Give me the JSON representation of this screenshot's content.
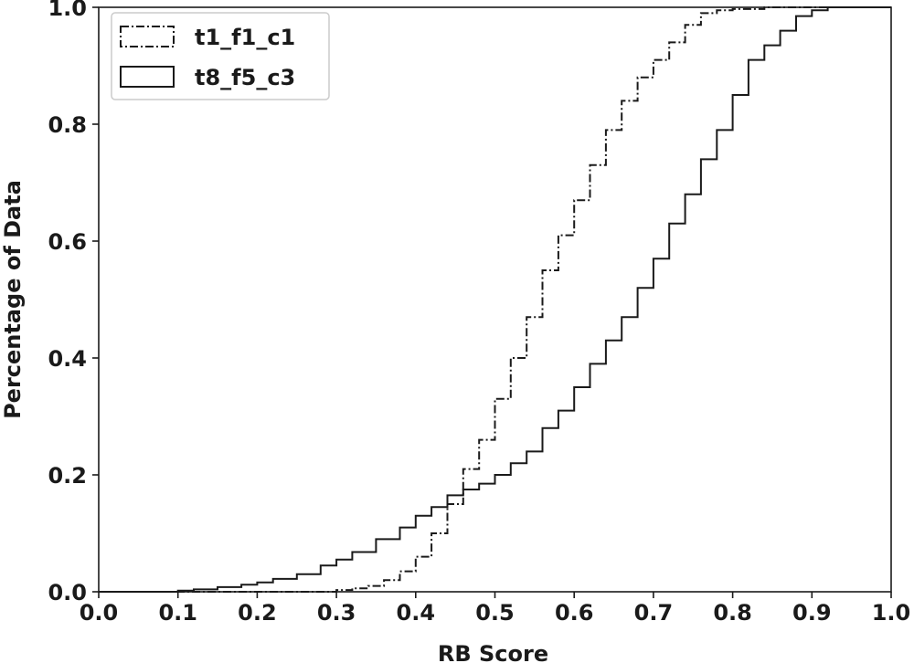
{
  "chart_data": {
    "type": "line",
    "subtype": "step-cdf",
    "title": "",
    "xlabel": "RB Score",
    "ylabel": "Percentage of Data",
    "xlim": [
      0.0,
      1.0
    ],
    "ylim": [
      0.0,
      1.0
    ],
    "xticks": [
      "0.0",
      "0.1",
      "0.2",
      "0.3",
      "0.4",
      "0.5",
      "0.6",
      "0.7",
      "0.8",
      "0.9",
      "1.0"
    ],
    "yticks": [
      "0.0",
      "0.2",
      "0.4",
      "0.6",
      "0.8",
      "1.0"
    ],
    "grid": false,
    "legend": "top-left",
    "series": [
      {
        "name": "t1_f1_c1",
        "style": "dashdot",
        "color": "#1a1a1a",
        "x": [
          0.0,
          0.28,
          0.3,
          0.32,
          0.34,
          0.36,
          0.38,
          0.4,
          0.42,
          0.44,
          0.46,
          0.48,
          0.5,
          0.52,
          0.54,
          0.56,
          0.58,
          0.6,
          0.62,
          0.64,
          0.66,
          0.68,
          0.7,
          0.72,
          0.74,
          0.76,
          0.78,
          0.8,
          0.84,
          0.88,
          0.92,
          1.0
        ],
        "y": [
          0.0,
          0.0,
          0.003,
          0.006,
          0.01,
          0.02,
          0.035,
          0.06,
          0.1,
          0.15,
          0.21,
          0.26,
          0.33,
          0.4,
          0.47,
          0.55,
          0.61,
          0.67,
          0.73,
          0.79,
          0.84,
          0.88,
          0.91,
          0.94,
          0.97,
          0.99,
          0.995,
          0.997,
          1.0,
          1.0,
          1.0,
          1.0
        ]
      },
      {
        "name": "t8_f5_c3",
        "style": "solid",
        "color": "#1a1a1a",
        "x": [
          0.0,
          0.08,
          0.1,
          0.12,
          0.15,
          0.18,
          0.2,
          0.22,
          0.25,
          0.28,
          0.3,
          0.32,
          0.35,
          0.38,
          0.4,
          0.42,
          0.44,
          0.46,
          0.48,
          0.5,
          0.52,
          0.54,
          0.56,
          0.58,
          0.6,
          0.62,
          0.64,
          0.66,
          0.68,
          0.7,
          0.72,
          0.74,
          0.76,
          0.78,
          0.8,
          0.82,
          0.84,
          0.86,
          0.88,
          0.9,
          0.92,
          1.0
        ],
        "y": [
          0.0,
          0.0,
          0.002,
          0.004,
          0.008,
          0.012,
          0.016,
          0.022,
          0.03,
          0.045,
          0.055,
          0.068,
          0.09,
          0.11,
          0.13,
          0.145,
          0.165,
          0.175,
          0.185,
          0.2,
          0.22,
          0.24,
          0.28,
          0.31,
          0.35,
          0.39,
          0.43,
          0.47,
          0.52,
          0.57,
          0.63,
          0.68,
          0.74,
          0.79,
          0.85,
          0.91,
          0.935,
          0.96,
          0.985,
          0.995,
          1.0,
          1.0
        ]
      }
    ]
  }
}
